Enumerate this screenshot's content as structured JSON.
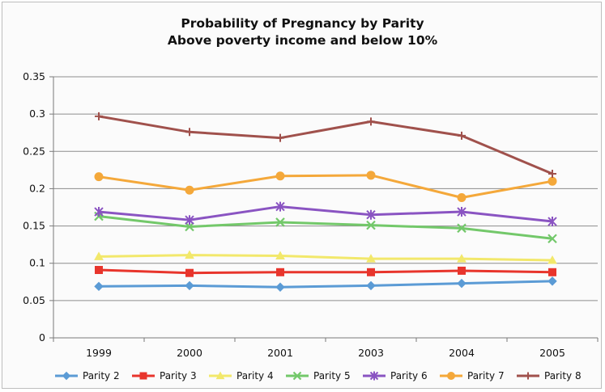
{
  "chart_data": {
    "type": "line",
    "title": "Probability of Pregnancy by Parity",
    "subtitle": "Above poverty income and below 10%",
    "categories": [
      "1999",
      "2000",
      "2001",
      "2003",
      "2004",
      "2005"
    ],
    "ylim": [
      0,
      0.35
    ],
    "yticks": [
      "0",
      "0.05",
      "0.1",
      "0.15",
      "0.2",
      "0.25",
      "0.3",
      "0.35"
    ],
    "grid": true,
    "legend_position": "bottom",
    "series": [
      {
        "name": "Parity 2",
        "color": "#5b9bd5",
        "marker": "diamond",
        "values": [
          0.069,
          0.07,
          0.068,
          0.07,
          0.073,
          0.076
        ]
      },
      {
        "name": "Parity 3",
        "color": "#e8352c",
        "marker": "square",
        "values": [
          0.091,
          0.087,
          0.088,
          0.088,
          0.09,
          0.088
        ]
      },
      {
        "name": "Parity 4",
        "color": "#f2e86b",
        "marker": "triangle",
        "values": [
          0.109,
          0.111,
          0.11,
          0.106,
          0.106,
          0.104
        ]
      },
      {
        "name": "Parity 5",
        "color": "#73c86a",
        "marker": "x",
        "values": [
          0.163,
          0.149,
          0.155,
          0.151,
          0.147,
          0.133
        ]
      },
      {
        "name": "Parity 6",
        "color": "#8a54c2",
        "marker": "star",
        "values": [
          0.169,
          0.158,
          0.176,
          0.165,
          0.169,
          0.156
        ]
      },
      {
        "name": "Parity 7",
        "color": "#f4a83a",
        "marker": "circle",
        "values": [
          0.216,
          0.198,
          0.217,
          0.218,
          0.188,
          0.21
        ]
      },
      {
        "name": "Parity 8",
        "color": "#a0514c",
        "marker": "plus",
        "values": [
          0.297,
          0.276,
          0.268,
          0.29,
          0.271,
          0.22
        ]
      }
    ]
  }
}
